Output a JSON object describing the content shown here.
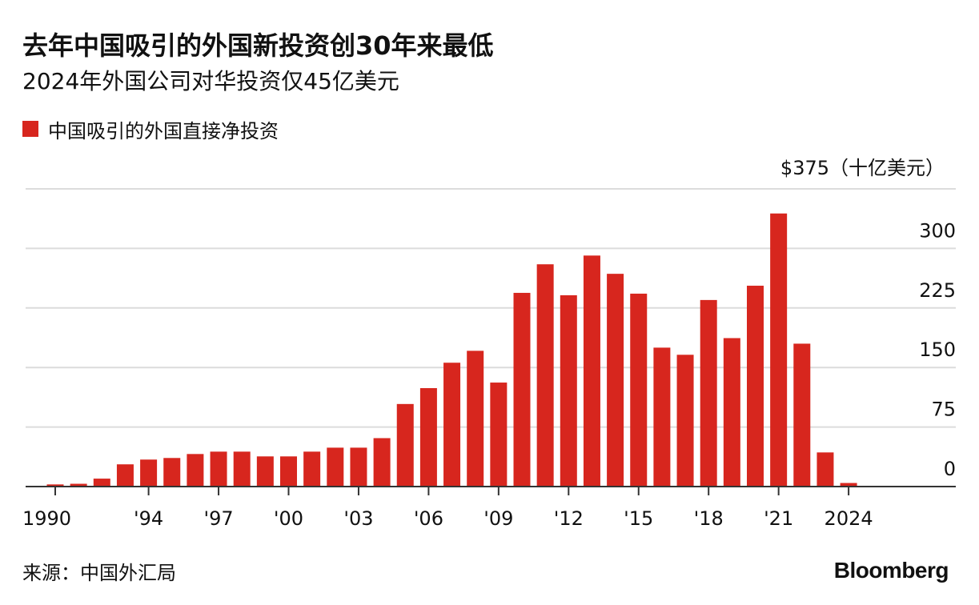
{
  "header": {
    "title": "去年中国吸引的外国新投资创30年来最低",
    "subtitle": "2024年外国公司对华投资仅45亿美元"
  },
  "legend": {
    "label": "中国吸引的外国直接净投资",
    "color": "#d7261e"
  },
  "footer": {
    "source": "来源：中国外汇局",
    "brand": "Bloomberg"
  },
  "chart_data": {
    "type": "bar",
    "title": "去年中国吸引的外国新投资创30年来最低",
    "subtitle": "2024年外国公司对华投资仅45亿美元",
    "categories": [
      "1990",
      "1991",
      "1992",
      "1993",
      "1994",
      "1995",
      "1996",
      "1997",
      "1998",
      "1999",
      "2000",
      "2001",
      "2002",
      "2003",
      "2004",
      "2005",
      "2006",
      "2007",
      "2008",
      "2009",
      "2010",
      "2011",
      "2012",
      "2013",
      "2014",
      "2015",
      "2016",
      "2017",
      "2018",
      "2019",
      "2020",
      "2021",
      "2022",
      "2023",
      "2024"
    ],
    "tick_labels": [
      "1990",
      "",
      "",
      "",
      "'94",
      "",
      "",
      "'97",
      "",
      "",
      "'00",
      "",
      "",
      "'03",
      "",
      "",
      "'06",
      "",
      "",
      "'09",
      "",
      "",
      "'12",
      "",
      "",
      "'15",
      "",
      "",
      "'18",
      "",
      "",
      "'21",
      "",
      "",
      "2024"
    ],
    "series": [
      {
        "name": "中国吸引的外国直接净投资",
        "values": [
          2.7,
          3.5,
          10,
          28,
          34,
          36,
          41,
          44,
          44,
          38,
          38,
          44,
          49,
          49,
          61,
          104,
          124,
          156,
          171,
          131,
          244,
          280,
          241,
          291,
          268,
          243,
          175,
          166,
          235,
          187,
          253,
          344,
          180,
          43,
          4.5
        ],
        "color": "#d7261e"
      }
    ],
    "y_unit_label": "$375（十亿美元）",
    "y_ticks": [
      0,
      75,
      150,
      225,
      300,
      375
    ],
    "y_tick_labels": [
      "0",
      "75",
      "150",
      "225",
      "300",
      ""
    ],
    "ylim": [
      0,
      375
    ],
    "grid": true,
    "y_axis_position": "right",
    "legend_position": "top-left"
  }
}
